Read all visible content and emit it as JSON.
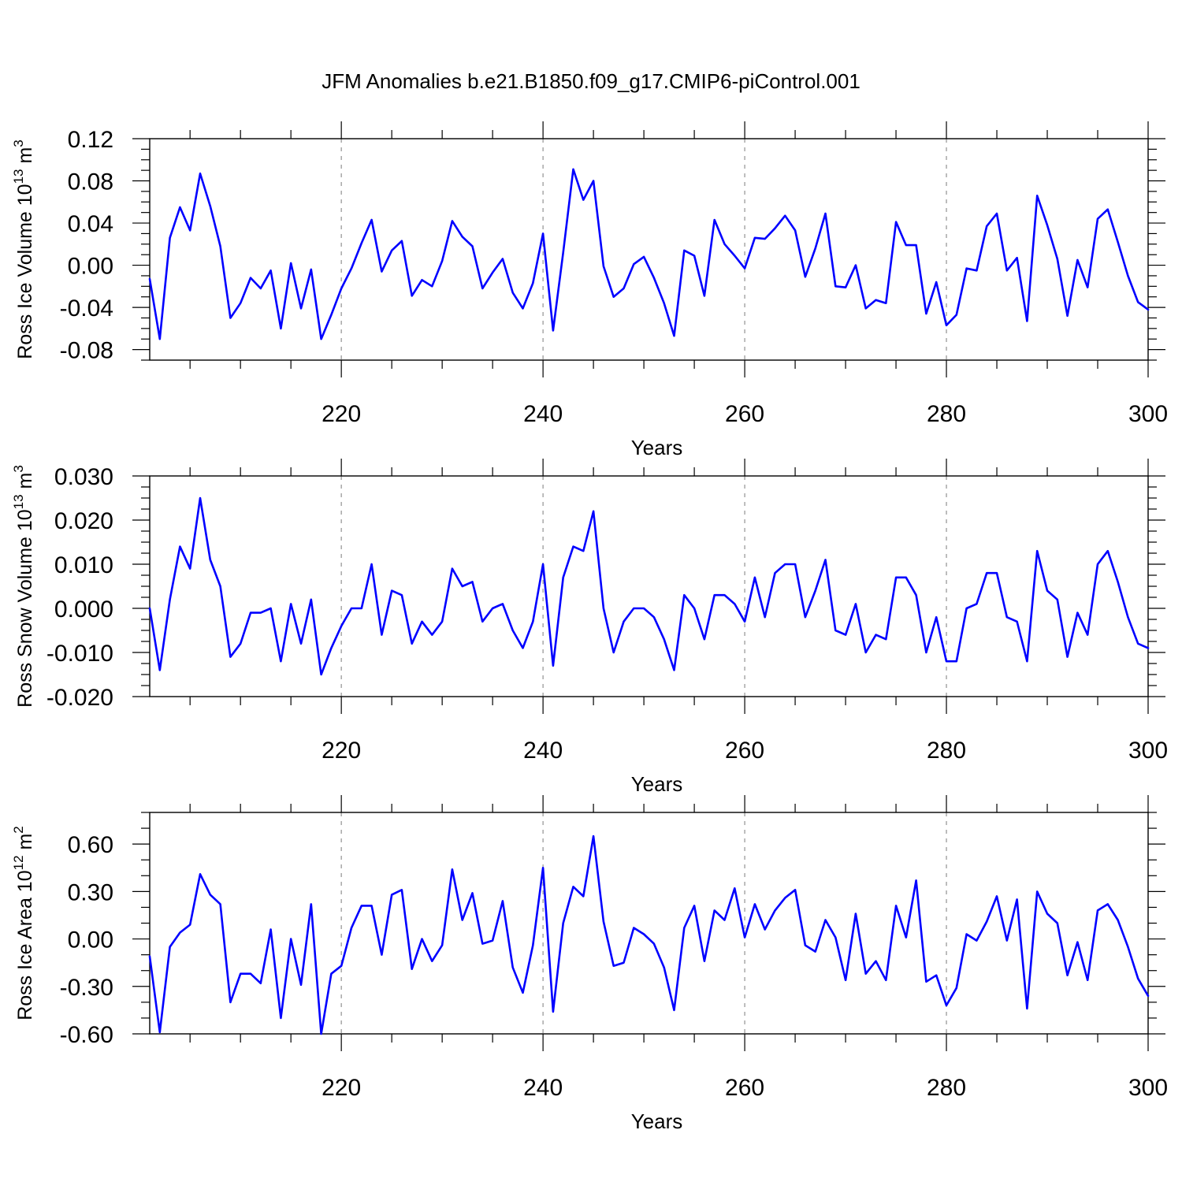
{
  "title": "JFM Anomalies b.e21.B1850.f09_g17.CMIP6-piControl.001",
  "line_color": "#0000ff",
  "chart_data": [
    {
      "type": "line",
      "title": "",
      "xlabel": "Years",
      "ylabel": {
        "text": "Ross Ice Volume 10",
        "exponent": "13",
        "unit": " m",
        "unit_exponent": "3"
      },
      "xlim": [
        201,
        300
      ],
      "ylim": [
        -0.09,
        0.12
      ],
      "x_ticks": [
        220,
        240,
        260,
        280,
        300
      ],
      "y_ticks": [
        "0.12",
        "0.08",
        "0.04",
        "0.00",
        "-0.04",
        "-0.08"
      ],
      "grid": "vertical dashed at 220, 240, 260, 280",
      "x": [
        201,
        202,
        203,
        204,
        205,
        206,
        207,
        208,
        209,
        210,
        211,
        212,
        213,
        214,
        215,
        216,
        217,
        218,
        219,
        220,
        221,
        222,
        223,
        224,
        225,
        226,
        227,
        228,
        229,
        230,
        231,
        232,
        233,
        234,
        235,
        236,
        237,
        238,
        239,
        240,
        241,
        242,
        243,
        244,
        245,
        246,
        247,
        248,
        249,
        250,
        251,
        252,
        253,
        254,
        255,
        256,
        257,
        258,
        259,
        260,
        261,
        262,
        263,
        264,
        265,
        266,
        267,
        268,
        269,
        270,
        271,
        272,
        273,
        274,
        275,
        276,
        277,
        278,
        279,
        280,
        281,
        282,
        283,
        284,
        285,
        286,
        287,
        288,
        289,
        290,
        291,
        292,
        293,
        294,
        295,
        296,
        297,
        298,
        299,
        300
      ],
      "series": [
        {
          "values": [
            -0.013,
            -0.07,
            0.026,
            0.055,
            0.033,
            0.087,
            0.056,
            0.018,
            -0.05,
            -0.036,
            -0.012,
            -0.022,
            -0.005,
            -0.06,
            0.002,
            -0.041,
            -0.004,
            -0.07,
            -0.047,
            -0.022,
            -0.003,
            0.021,
            0.043,
            -0.006,
            0.014,
            0.023,
            -0.029,
            -0.014,
            -0.02,
            0.004,
            0.042,
            0.027,
            0.018,
            -0.022,
            -0.007,
            0.006,
            -0.026,
            -0.041,
            -0.017,
            0.03,
            -0.062,
            0.012,
            0.091,
            0.062,
            0.08,
            -0.001,
            -0.03,
            -0.022,
            0.001,
            0.008,
            -0.012,
            -0.036,
            -0.067,
            0.014,
            0.009,
            -0.029,
            0.043,
            0.02,
            0.009,
            -0.003,
            0.026,
            0.025,
            0.035,
            0.047,
            0.033,
            -0.011,
            0.016,
            0.049,
            -0.02,
            -0.021,
            0.0,
            -0.041,
            -0.033,
            -0.036,
            0.041,
            0.019,
            0.019,
            -0.046,
            -0.016,
            -0.057,
            -0.047,
            -0.003,
            -0.005,
            0.037,
            0.049,
            -0.005,
            0.007,
            -0.053,
            0.066,
            0.038,
            0.006,
            -0.048,
            0.005,
            -0.021,
            0.044,
            0.053,
            0.022,
            -0.01,
            -0.035,
            -0.042
          ]
        }
      ]
    },
    {
      "type": "line",
      "title": "",
      "xlabel": "Years",
      "ylabel": {
        "text": "Ross Snow Volume 10",
        "exponent": "13",
        "unit": " m",
        "unit_exponent": "3"
      },
      "xlim": [
        201,
        300
      ],
      "ylim": [
        -0.02,
        0.03
      ],
      "x_ticks": [
        220,
        240,
        260,
        280,
        300
      ],
      "y_ticks": [
        "0.030",
        "0.020",
        "0.010",
        "0.000",
        "-0.010",
        "-0.020"
      ],
      "grid": "vertical dashed at 220, 240, 260, 280",
      "x": [
        201,
        202,
        203,
        204,
        205,
        206,
        207,
        208,
        209,
        210,
        211,
        212,
        213,
        214,
        215,
        216,
        217,
        218,
        219,
        220,
        221,
        222,
        223,
        224,
        225,
        226,
        227,
        228,
        229,
        230,
        231,
        232,
        233,
        234,
        235,
        236,
        237,
        238,
        239,
        240,
        241,
        242,
        243,
        244,
        245,
        246,
        247,
        248,
        249,
        250,
        251,
        252,
        253,
        254,
        255,
        256,
        257,
        258,
        259,
        260,
        261,
        262,
        263,
        264,
        265,
        266,
        267,
        268,
        269,
        270,
        271,
        272,
        273,
        274,
        275,
        276,
        277,
        278,
        279,
        280,
        281,
        282,
        283,
        284,
        285,
        286,
        287,
        288,
        289,
        290,
        291,
        292,
        293,
        294,
        295,
        296,
        297,
        298,
        299,
        300
      ],
      "series": [
        {
          "values": [
            0.0,
            -0.014,
            0.002,
            0.014,
            0.009,
            0.025,
            0.011,
            0.005,
            -0.011,
            -0.008,
            -0.001,
            -0.001,
            0.0,
            -0.012,
            0.001,
            -0.008,
            0.002,
            -0.015,
            -0.009,
            -0.004,
            0.0,
            0.0,
            0.01,
            -0.006,
            0.004,
            0.003,
            -0.008,
            -0.003,
            -0.006,
            -0.003,
            0.009,
            0.005,
            0.006,
            -0.003,
            0.0,
            0.001,
            -0.005,
            -0.009,
            -0.003,
            0.01,
            -0.013,
            0.007,
            0.014,
            0.013,
            0.022,
            0.0,
            -0.01,
            -0.003,
            0.0,
            0.0,
            -0.002,
            -0.007,
            -0.014,
            0.003,
            0.0,
            -0.007,
            0.003,
            0.003,
            0.001,
            -0.003,
            0.007,
            -0.002,
            0.008,
            0.01,
            0.01,
            -0.002,
            0.004,
            0.011,
            -0.005,
            -0.006,
            0.001,
            -0.01,
            -0.006,
            -0.007,
            0.007,
            0.007,
            0.003,
            -0.01,
            -0.002,
            -0.012,
            -0.012,
            0.0,
            0.001,
            0.008,
            0.008,
            -0.002,
            -0.003,
            -0.012,
            0.013,
            0.004,
            0.002,
            -0.011,
            -0.001,
            -0.006,
            0.01,
            0.013,
            0.006,
            -0.002,
            -0.008,
            -0.009
          ]
        }
      ]
    },
    {
      "type": "line",
      "title": "",
      "xlabel": "Years",
      "ylabel": {
        "text": "Ross Ice Area 10",
        "exponent": "12",
        "unit": " m",
        "unit_exponent": "2"
      },
      "xlim": [
        201,
        300
      ],
      "ylim": [
        -0.6,
        0.8
      ],
      "x_ticks": [
        220,
        240,
        260,
        280,
        300
      ],
      "y_ticks": [
        "0.60",
        "0.30",
        "0.00",
        "-0.30",
        "-0.60"
      ],
      "grid": "vertical dashed at 220, 240, 260, 280",
      "x": [
        201,
        202,
        203,
        204,
        205,
        206,
        207,
        208,
        209,
        210,
        211,
        212,
        213,
        214,
        215,
        216,
        217,
        218,
        219,
        220,
        221,
        222,
        223,
        224,
        225,
        226,
        227,
        228,
        229,
        230,
        231,
        232,
        233,
        234,
        235,
        236,
        237,
        238,
        239,
        240,
        241,
        242,
        243,
        244,
        245,
        246,
        247,
        248,
        249,
        250,
        251,
        252,
        253,
        254,
        255,
        256,
        257,
        258,
        259,
        260,
        261,
        262,
        263,
        264,
        265,
        266,
        267,
        268,
        269,
        270,
        271,
        272,
        273,
        274,
        275,
        276,
        277,
        278,
        279,
        280,
        281,
        282,
        283,
        284,
        285,
        286,
        287,
        288,
        289,
        290,
        291,
        292,
        293,
        294,
        295,
        296,
        297,
        298,
        299,
        300
      ],
      "series": [
        {
          "values": [
            -0.11,
            -0.59,
            -0.05,
            0.04,
            0.09,
            0.41,
            0.28,
            0.22,
            -0.4,
            -0.22,
            -0.22,
            -0.28,
            0.06,
            -0.5,
            0.0,
            -0.29,
            0.22,
            -0.6,
            -0.22,
            -0.17,
            0.07,
            0.21,
            0.21,
            -0.1,
            0.28,
            0.31,
            -0.19,
            0.0,
            -0.14,
            -0.04,
            0.44,
            0.12,
            0.29,
            -0.03,
            -0.01,
            0.24,
            -0.18,
            -0.34,
            -0.04,
            0.45,
            -0.46,
            0.1,
            0.33,
            0.27,
            0.65,
            0.11,
            -0.17,
            -0.15,
            0.07,
            0.03,
            -0.03,
            -0.18,
            -0.45,
            0.07,
            0.21,
            -0.14,
            0.18,
            0.12,
            0.32,
            0.01,
            0.22,
            0.06,
            0.18,
            0.26,
            0.31,
            -0.04,
            -0.08,
            0.12,
            0.01,
            -0.26,
            0.16,
            -0.22,
            -0.14,
            -0.26,
            0.21,
            0.01,
            0.37,
            -0.27,
            -0.23,
            -0.42,
            -0.31,
            0.03,
            -0.01,
            0.11,
            0.27,
            -0.01,
            0.25,
            -0.44,
            0.3,
            0.16,
            0.1,
            -0.23,
            -0.02,
            -0.26,
            0.18,
            0.22,
            0.12,
            -0.05,
            -0.25,
            -0.36
          ]
        }
      ]
    }
  ]
}
